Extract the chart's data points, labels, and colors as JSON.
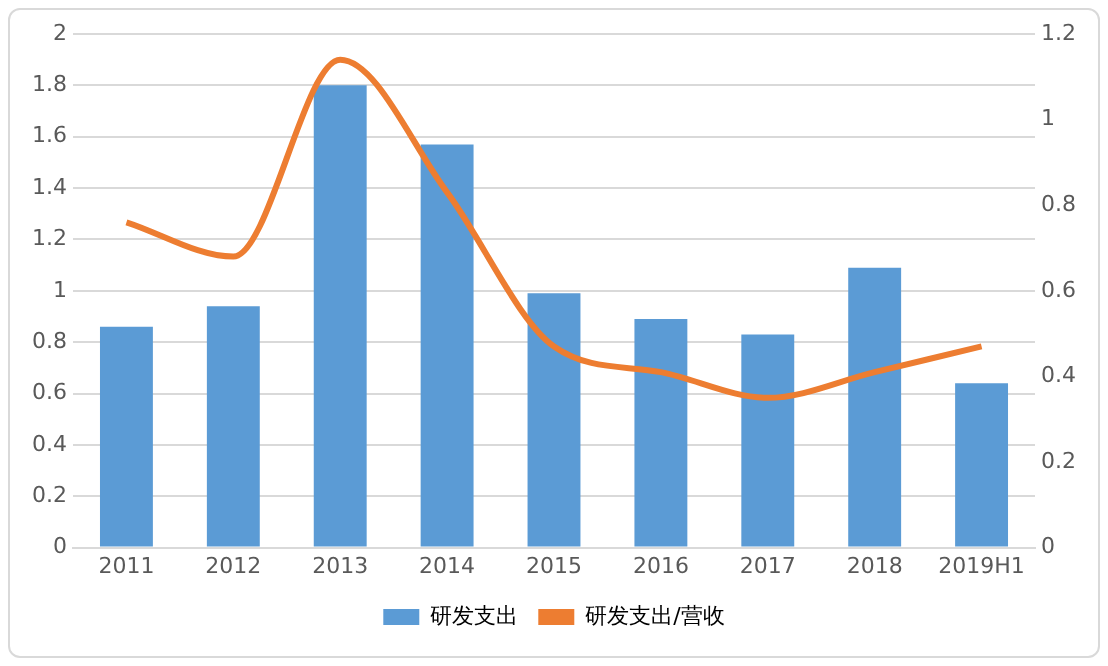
{
  "chart_data": {
    "type": "bar",
    "categories": [
      "2011",
      "2012",
      "2013",
      "2014",
      "2015",
      "2016",
      "2017",
      "2018",
      "2019H1"
    ],
    "series": [
      {
        "name": "研发支出",
        "color": "#5b9bd5",
        "values": [
          0.86,
          0.94,
          1.8,
          1.57,
          0.99,
          0.89,
          0.83,
          1.09,
          0.64
        ]
      },
      {
        "name": "研发支出/营收",
        "type": "line",
        "axis": "y2",
        "color": "#ed7d31",
        "values": [
          0.76,
          0.68,
          1.14,
          0.83,
          0.47,
          0.41,
          0.35,
          0.41,
          0.47
        ]
      }
    ],
    "ylim": [
      0,
      2
    ],
    "yticks": [
      0,
      0.2,
      0.4,
      0.6,
      0.8,
      1,
      1.2,
      1.4,
      1.6,
      1.8,
      2
    ],
    "y2lim": [
      0,
      1.2
    ],
    "y2ticks": [
      0,
      0.2,
      0.4,
      0.6,
      0.8,
      1,
      1.2
    ],
    "grid": "y",
    "legend": "bottom",
    "marker": "none"
  }
}
